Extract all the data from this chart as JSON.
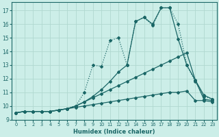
{
  "xlabel": "Humidex (Indice chaleur)",
  "background_color": "#cceee8",
  "grid_color": "#b0d8d0",
  "line_color": "#1a6666",
  "xlim": [
    -0.5,
    23.5
  ],
  "ylim": [
    9.0,
    17.6
  ],
  "yticks": [
    9,
    10,
    11,
    12,
    13,
    14,
    15,
    16,
    17
  ],
  "xticks": [
    0,
    1,
    2,
    3,
    4,
    5,
    6,
    7,
    8,
    9,
    10,
    11,
    12,
    13,
    14,
    15,
    16,
    17,
    18,
    19,
    20,
    21,
    22,
    23
  ],
  "series": [
    {
      "x": [
        0,
        1,
        2,
        3,
        4,
        5,
        6,
        7,
        8,
        9,
        10,
        11,
        12,
        13,
        14,
        15,
        16,
        17,
        18,
        19,
        20,
        21,
        22,
        23
      ],
      "y": [
        9.5,
        9.6,
        9.6,
        9.6,
        9.6,
        9.7,
        9.8,
        10.0,
        11.0,
        13.0,
        12.9,
        14.8,
        15.0,
        13.0,
        16.2,
        16.5,
        15.9,
        17.2,
        17.2,
        16.0,
        13.0,
        11.8,
        10.7,
        10.5
      ],
      "dotted": true
    },
    {
      "x": [
        0,
        1,
        2,
        3,
        4,
        5,
        6,
        7,
        8,
        9,
        10,
        11,
        12,
        13,
        14,
        15,
        16,
        17,
        18,
        19,
        20,
        21,
        22,
        23
      ],
      "y": [
        9.5,
        9.6,
        9.6,
        9.6,
        9.6,
        9.7,
        9.8,
        10.0,
        10.3,
        10.7,
        11.2,
        11.8,
        12.5,
        13.0,
        16.2,
        16.5,
        16.0,
        17.2,
        17.2,
        14.9,
        13.0,
        11.9,
        10.8,
        10.5
      ],
      "dotted": false
    },
    {
      "x": [
        0,
        1,
        2,
        3,
        4,
        5,
        6,
        7,
        8,
        9,
        10,
        11,
        12,
        13,
        14,
        15,
        16,
        17,
        18,
        19,
        20,
        21,
        22,
        23
      ],
      "y": [
        9.5,
        9.6,
        9.6,
        9.6,
        9.6,
        9.7,
        9.8,
        10.0,
        10.3,
        10.6,
        10.9,
        11.2,
        11.5,
        11.8,
        12.1,
        12.4,
        12.7,
        13.0,
        13.3,
        13.6,
        13.9,
        11.9,
        10.5,
        10.4
      ],
      "dotted": false
    },
    {
      "x": [
        0,
        1,
        2,
        3,
        4,
        5,
        6,
        7,
        8,
        9,
        10,
        11,
        12,
        13,
        14,
        15,
        16,
        17,
        18,
        19,
        20,
        21,
        22,
        23
      ],
      "y": [
        9.5,
        9.6,
        9.6,
        9.6,
        9.6,
        9.7,
        9.8,
        9.9,
        10.0,
        10.1,
        10.2,
        10.3,
        10.4,
        10.5,
        10.6,
        10.7,
        10.8,
        10.9,
        11.0,
        11.0,
        11.1,
        10.4,
        10.4,
        10.3
      ],
      "dotted": false
    }
  ]
}
